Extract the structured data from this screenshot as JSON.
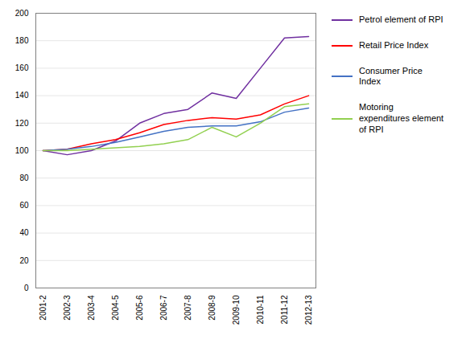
{
  "chart_data": {
    "type": "line",
    "categories": [
      "2001-2",
      "2002-3",
      "2003-4",
      "2004-5",
      "2005-6",
      "2006-7",
      "2007-8",
      "2008-9",
      "2009-10",
      "2010-11",
      "2011-12",
      "2012-13"
    ],
    "series": [
      {
        "name": "Petrol element of RPI",
        "color": "#7030A0",
        "values": [
          100,
          97,
          100,
          107,
          120,
          127,
          130,
          142,
          138,
          160,
          182,
          183
        ]
      },
      {
        "name": "Retail Price Index",
        "color": "#FF0000",
        "values": [
          100,
          101,
          105,
          108,
          113,
          119,
          122,
          124,
          123,
          126,
          134,
          140
        ]
      },
      {
        "name": "Consumer Price\nIndex",
        "color": "#4472C4",
        "values": [
          100,
          101,
          103,
          106,
          110,
          114,
          117,
          118,
          118,
          121,
          128,
          131
        ]
      },
      {
        "name": "Motoring\nexpenditures element\nof RPI",
        "color": "#92D050",
        "values": [
          100,
          100,
          101,
          102,
          103,
          105,
          108,
          117,
          110,
          120,
          132,
          134
        ]
      }
    ],
    "ylim": [
      0,
      200
    ],
    "yticks": [
      0,
      20,
      40,
      60,
      80,
      100,
      120,
      140,
      160,
      180,
      200
    ],
    "grid": true,
    "legend": "right"
  }
}
